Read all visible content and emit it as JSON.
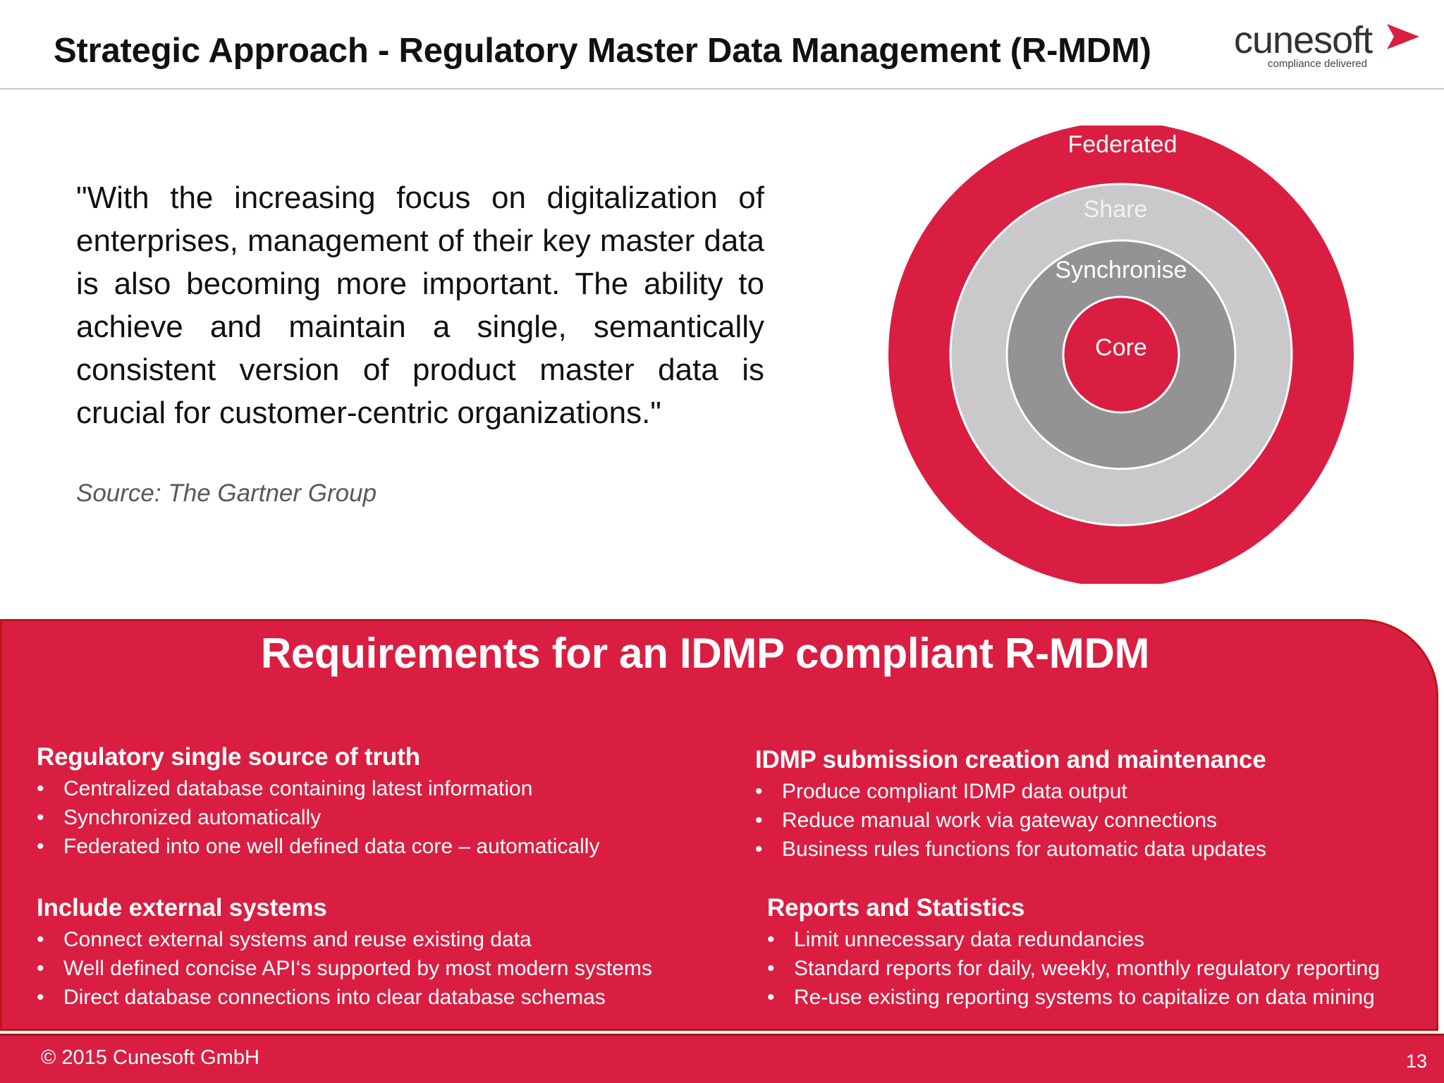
{
  "header": {
    "title": "Strategic Approach - Regulatory Master Data Management (R-MDM)",
    "logo": {
      "wordmark": "cunesoft",
      "tagline": "compliance delivered",
      "arrow_icon": "play-arrow-icon",
      "accent_color": "#d91e42"
    }
  },
  "quote": {
    "text": "\"With the increasing focus on digitalization of enterprises, management of their key master data is also becoming more important. The ability to achieve and maintain a single, semantically consistent version of product master data is crucial for customer-centric organizations.\"",
    "source": "Source: The Gartner Group"
  },
  "diagram": {
    "rings": [
      {
        "label": "Federated",
        "color": "#d91e42"
      },
      {
        "label": "Share",
        "color": "#c9c8ca"
      },
      {
        "label": "Synchronise",
        "color": "#939295"
      },
      {
        "label": "Core",
        "color": "#d91e42"
      }
    ]
  },
  "requirements": {
    "title": "Requirements for an IDMP compliant  R-MDM",
    "sections": [
      {
        "heading": "Regulatory single source of truth",
        "items": [
          "Centralized database containing latest information",
          "Synchronized automatically",
          "Federated into one well defined data core – automatically"
        ]
      },
      {
        "heading": "IDMP submission creation and maintenance",
        "items": [
          "Produce compliant IDMP data output",
          "Reduce manual work via gateway connections",
          "Business rules functions for automatic data updates"
        ]
      },
      {
        "heading": "Include external systems",
        "items": [
          "Connect external systems and reuse existing data",
          "Well defined concise API‘s supported by most modern systems",
          "Direct database connections into clear database schemas"
        ]
      },
      {
        "heading": "Reports and Statistics",
        "items": [
          "Limit unnecessary data redundancies",
          "Standard reports for daily, weekly, monthly regulatory reporting",
          "Re-use existing reporting systems to capitalize on data mining"
        ]
      }
    ]
  },
  "footer": {
    "copyright": "© 2015 Cunesoft GmbH",
    "page_number": "13"
  }
}
